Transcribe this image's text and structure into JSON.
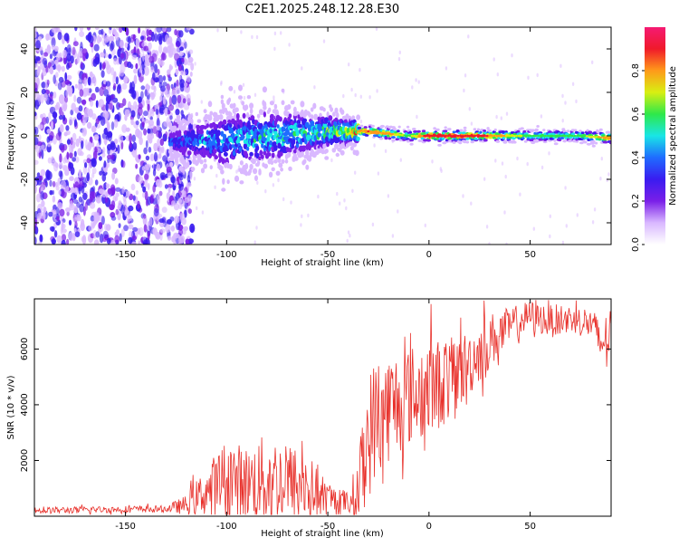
{
  "page_title": "C2E1.2025.248.12.28.E30",
  "colors": {
    "snr_line": "#e8302a",
    "axis": "#000000",
    "colormap": [
      "#ffffff",
      "#d9b8ff",
      "#7a1fe8",
      "#3a1cf0",
      "#1f6cff",
      "#19e6e6",
      "#2ee84a",
      "#d8ef12",
      "#ff9a1a",
      "#f01a2a",
      "#f51a72"
    ]
  },
  "chart_data": [
    {
      "type": "heatmap",
      "title": "C2E1.2025.248.12.28.E30",
      "xlabel": "Height of straight line (km)",
      "ylabel": "Frequency (Hz)",
      "xlim": [
        -195,
        90
      ],
      "ylim": [
        -50,
        50
      ],
      "xticks": [
        -150,
        -100,
        -50,
        0,
        50
      ],
      "yticks": [
        -40,
        -20,
        0,
        20,
        40
      ],
      "colorbar": {
        "label": "Normalized spectral amplitude",
        "range": [
          0.0,
          1.0
        ],
        "ticks": [
          "0.0",
          "0.2",
          "0.4",
          "0.6",
          "0.8"
        ]
      },
      "ridge": {
        "description": "narrow signal ridge near 0 Hz",
        "x": [
          -125,
          -100,
          -75,
          -50,
          -30,
          -20,
          -10,
          0,
          25,
          50,
          75,
          90
        ],
        "center_hz": [
          -3,
          -2,
          0,
          2,
          2,
          1,
          0,
          0,
          0,
          0,
          0,
          -1
        ],
        "peak_amplitude": [
          0.35,
          0.45,
          0.5,
          0.55,
          0.85,
          0.8,
          0.6,
          0.95,
          0.9,
          0.6,
          0.6,
          0.85
        ]
      },
      "noise_region": {
        "x_range": [
          -195,
          -125
        ],
        "amplitude": 0.25
      }
    },
    {
      "type": "line",
      "xlabel": "Height of straight line (km)",
      "ylabel": "SNR (10 * v/v)",
      "xlim": [
        -195,
        90
      ],
      "ylim": [
        0,
        7800
      ],
      "xticks": [
        -150,
        -100,
        -50,
        0,
        50
      ],
      "yticks": [
        2000,
        4000,
        6000
      ],
      "series": [
        {
          "name": "SNR",
          "x": [
            -195,
            -170,
            -150,
            -130,
            -120,
            -110,
            -100,
            -90,
            -80,
            -70,
            -60,
            -50,
            -40,
            -35,
            -30,
            -25,
            -20,
            -10,
            0,
            10,
            20,
            30,
            40,
            50,
            60,
            70,
            80,
            85,
            90
          ],
          "values": [
            200,
            230,
            250,
            260,
            400,
            900,
            1300,
            1200,
            1300,
            1200,
            1000,
            600,
            500,
            900,
            2900,
            3700,
            3900,
            4300,
            4600,
            4900,
            5500,
            6300,
            6800,
            7200,
            7000,
            7100,
            6900,
            6200,
            6600
          ],
          "spread": [
            120,
            120,
            120,
            120,
            350,
            900,
            1500,
            1300,
            1700,
            1500,
            1300,
            600,
            400,
            1300,
            2300,
            2200,
            2000,
            1800,
            1800,
            1500,
            1200,
            1000,
            700,
            550,
            600,
            500,
            600,
            900,
            800
          ]
        }
      ]
    }
  ]
}
